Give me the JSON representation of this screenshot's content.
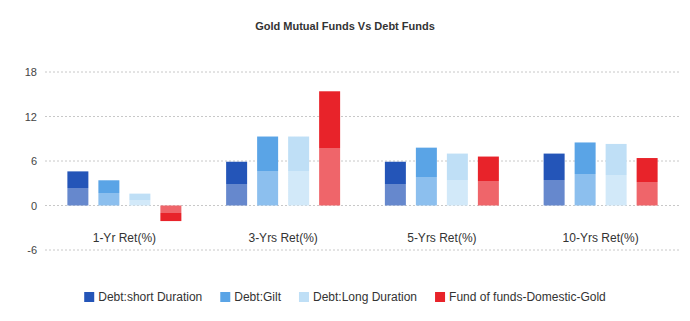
{
  "chart_data": {
    "type": "bar",
    "title": "Gold Mutual Funds Vs Debt Funds",
    "categories": [
      "1-Yr Ret(%)",
      "3-Yrs Ret(%)",
      "5-Yrs Ret(%)",
      "10-Yrs Ret(%)"
    ],
    "series": [
      {
        "name": "Debt:short Duration",
        "color": "#2455b8",
        "values": [
          4.6,
          5.9,
          5.9,
          7.0
        ]
      },
      {
        "name": "Debt:Gilt",
        "color": "#5aa4e6",
        "values": [
          3.4,
          9.3,
          7.8,
          8.5
        ]
      },
      {
        "name": "Debt:Long Duration",
        "color": "#bfdff6",
        "values": [
          1.6,
          9.3,
          7.0,
          8.3
        ]
      },
      {
        "name": "Fund of funds-Domestic-Gold",
        "color": "#e8232a",
        "values": [
          -2.1,
          15.4,
          6.6,
          6.4
        ]
      }
    ],
    "ylim": [
      -6,
      18
    ],
    "yticks": [
      -6,
      0,
      6,
      12,
      18
    ],
    "grid": true,
    "legend": "bottom"
  }
}
